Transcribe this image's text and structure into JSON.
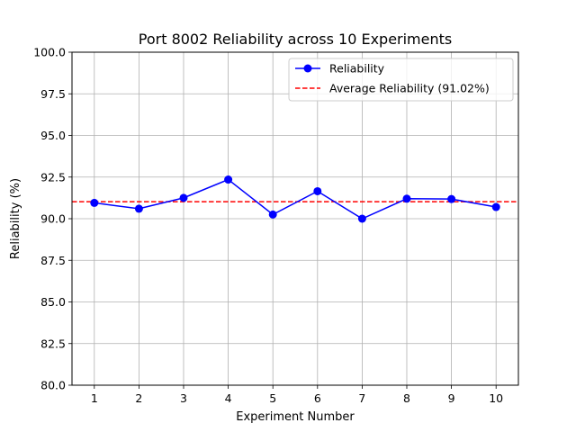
{
  "chart_data": {
    "type": "line",
    "title": "Port 8002 Reliability across 10 Experiments",
    "xlabel": "Experiment Number",
    "ylabel": "Reliability (%)",
    "x": [
      1,
      2,
      3,
      4,
      5,
      6,
      7,
      8,
      9,
      10
    ],
    "xlim": [
      0.5,
      10.5
    ],
    "ylim": [
      80.0,
      100.0
    ],
    "xticks": [
      "1",
      "2",
      "3",
      "4",
      "5",
      "6",
      "7",
      "8",
      "9",
      "10"
    ],
    "yticks": [
      "80.0",
      "82.5",
      "85.0",
      "87.5",
      "90.0",
      "92.5",
      "95.0",
      "97.5",
      "100.0"
    ],
    "grid": true,
    "legend_position": "upper right",
    "series": [
      {
        "name": "Reliability",
        "values": [
          90.95,
          90.6,
          91.25,
          92.35,
          90.25,
          91.65,
          90.0,
          91.2,
          91.18,
          90.7
        ],
        "color": "#0000ff",
        "style": "solid",
        "marker": "circle"
      }
    ],
    "reference_lines": [
      {
        "name": "Average Reliability (91.02%)",
        "value": 91.02,
        "color": "#ff0000",
        "style": "dashed"
      }
    ]
  }
}
